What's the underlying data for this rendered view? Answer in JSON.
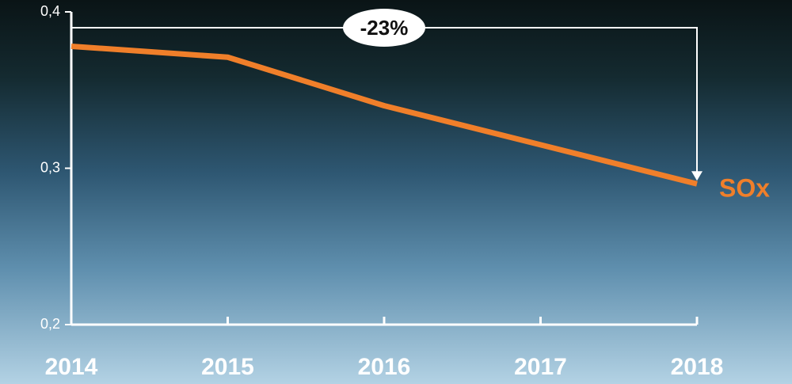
{
  "chart_data": {
    "type": "line",
    "categories": [
      "2014",
      "2015",
      "2016",
      "2017",
      "2018"
    ],
    "series": [
      {
        "name": "SOx",
        "color": "#f07f2a",
        "values": [
          0.378,
          0.371,
          0.34,
          0.315,
          0.29
        ]
      }
    ],
    "ylim": [
      0.2,
      0.4
    ],
    "yticks": [
      {
        "value": 0.2,
        "label": "0,2"
      },
      {
        "value": 0.3,
        "label": "0,3"
      },
      {
        "value": 0.4,
        "label": "0,4"
      }
    ],
    "annotation": "-23%",
    "grid": false
  }
}
